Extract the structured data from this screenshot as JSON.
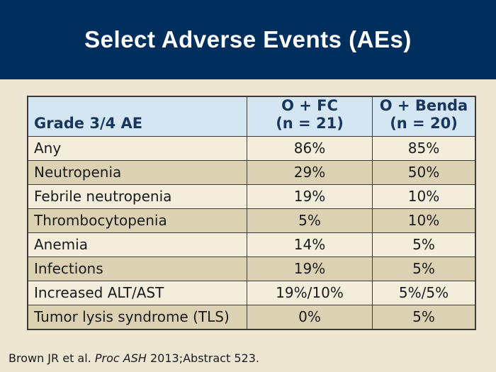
{
  "slide": {
    "title": "Select Adverse Events (AEs)",
    "footer": {
      "prefix": "Brown JR et al. ",
      "italic": "Proc ASH",
      "suffix": " 2013;Abstract 523."
    }
  },
  "table": {
    "header": {
      "col1": "Grade 3/4 AE",
      "col2_line1": "O + FC",
      "col2_line2": "(n = 21)",
      "col3_line1": "O + Benda",
      "col3_line2": "(n = 20)"
    },
    "rows": [
      {
        "label": "Any",
        "ofc": "86%",
        "obenda": "85%"
      },
      {
        "label": "Neutropenia",
        "ofc": "29%",
        "obenda": "50%"
      },
      {
        "label": "Febrile neutropenia",
        "ofc": "19%",
        "obenda": "10%"
      },
      {
        "label": "Thrombocytopenia",
        "ofc": "5%",
        "obenda": "10%"
      },
      {
        "label": "Anemia",
        "ofc": "14%",
        "obenda": "5%"
      },
      {
        "label": "Infections",
        "ofc": "19%",
        "obenda": "5%"
      },
      {
        "label": "Increased ALT/AST",
        "ofc": "19%/10%",
        "obenda": "5%/5%"
      },
      {
        "label": "Tumor lysis syndrome (TLS)",
        "ofc": "0%",
        "obenda": "5%"
      }
    ]
  },
  "colors": {
    "page_bg": "#ece6d2",
    "banner_bg": "#002f5e",
    "banner_text": "#ffffff",
    "header_bg": "#d4e6f1",
    "header_text": "#17365d",
    "row_light": "#f2eedb",
    "row_dark": "#dcd2b3",
    "border": "#3f3c33",
    "body_text": "#1a1a1a"
  }
}
